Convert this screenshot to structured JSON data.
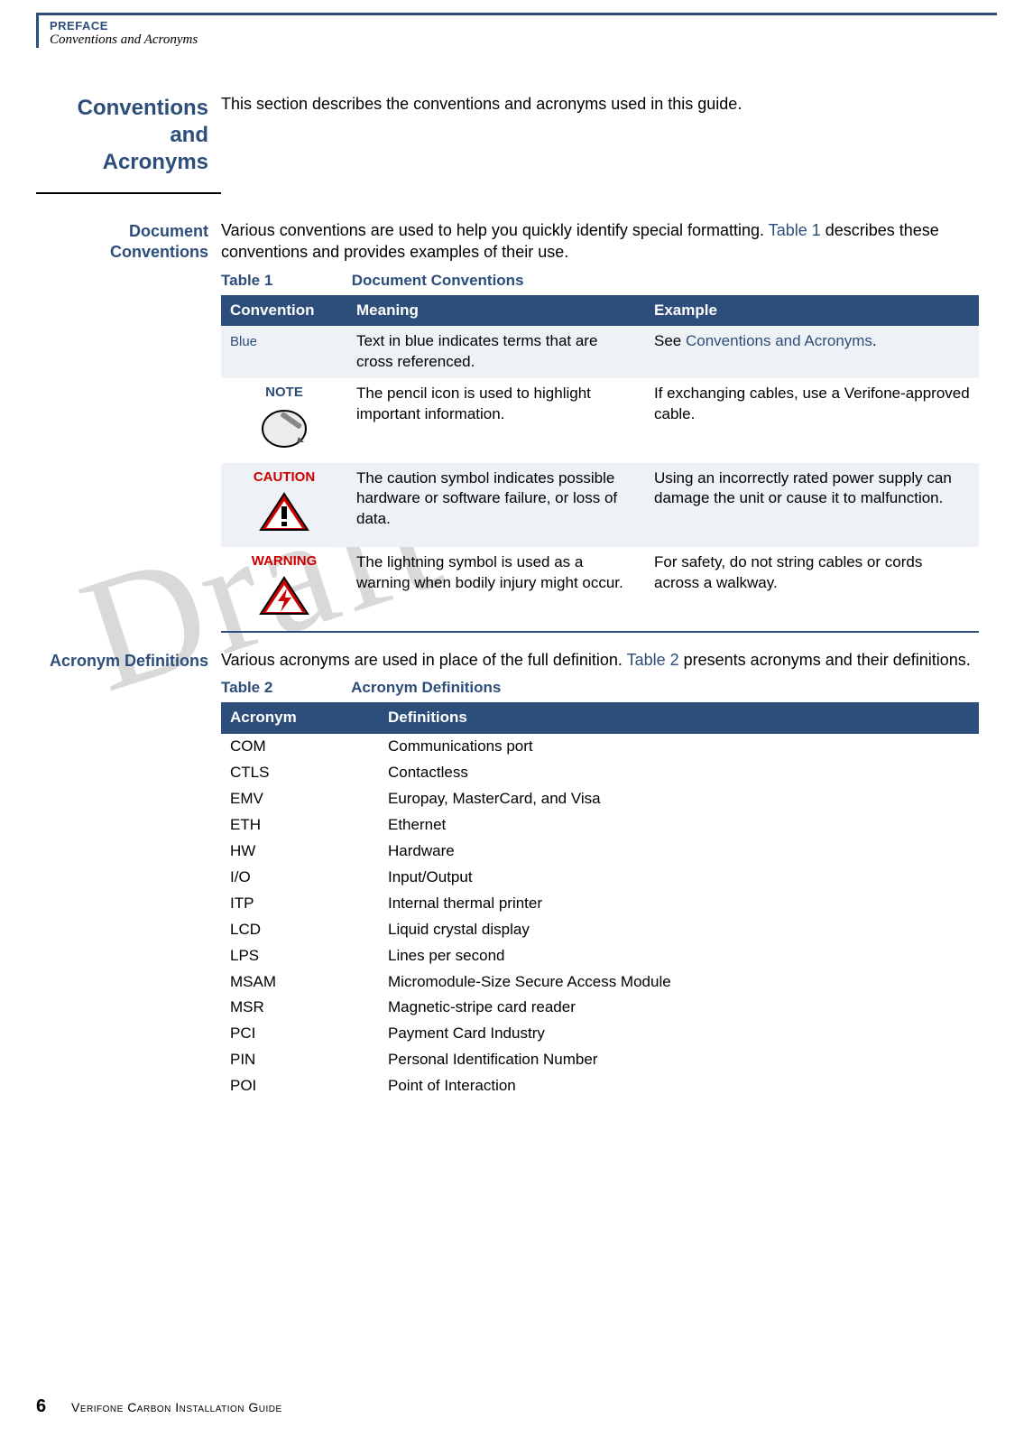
{
  "colors": {
    "brand": "#2d4d7a",
    "danger": "#cc0000",
    "watermark": "#d9d9d9",
    "alt_row": "#eef1f6"
  },
  "header": {
    "section": "PREFACE",
    "subsection": "Conventions and Acronyms"
  },
  "watermark": "Draft",
  "s1": {
    "heading_l1": "Conventions and",
    "heading_l2": "Acronyms",
    "body": "This section describes the conventions and acronyms used in this guide."
  },
  "s2": {
    "heading_l1": "Document",
    "heading_l2": "Conventions",
    "body1": "Various conventions are used to help you quickly identify special formatting. ",
    "body_link": "Table 1",
    "body2": " describes these conventions and provides examples of their use.",
    "table_num": "Table 1",
    "table_title": "Document Conventions",
    "cols": {
      "c1": "Convention",
      "c2": "Meaning",
      "c3": "Example"
    },
    "rows": {
      "r1": {
        "conv": "Blue",
        "mean": "Text in blue indicates terms that are cross referenced.",
        "ex_pre": "See ",
        "ex_link": "Conventions and Acronyms",
        "ex_post": "."
      },
      "r2": {
        "label": "NOTE",
        "mean": "The pencil icon is used to highlight important information.",
        "ex": "If exchanging cables, use a Verifone-approved cable."
      },
      "r3": {
        "label": "CAUTION",
        "mean": "The caution symbol indicates possible hardware or software failure, or loss of data.",
        "ex": "Using an incorrectly rated power supply can damage the unit or cause it to malfunction."
      },
      "r4": {
        "label": "WARNING",
        "mean": "The lightning symbol is used as a warning when bodily injury might occur.",
        "ex": "For safety, do not string cables or cords across a walkway."
      }
    }
  },
  "s3": {
    "heading": "Acronym Definitions",
    "body1": "Various acronyms are used in place of the full definition. ",
    "body_link": "Table 2",
    "body2": " presents acronyms and their definitions.",
    "table_num": "Table 2",
    "table_title": "Acronym Definitions",
    "cols": {
      "c1": "Acronym",
      "c2": "Definitions"
    },
    "rows": [
      {
        "a": "COM",
        "d": "Communications port"
      },
      {
        "a": "CTLS",
        "d": "Contactless"
      },
      {
        "a": "EMV",
        "d": "Europay, MasterCard, and Visa"
      },
      {
        "a": "ETH",
        "d": "Ethernet"
      },
      {
        "a": "HW",
        "d": "Hardware"
      },
      {
        "a": "I/O",
        "d": "Input/Output"
      },
      {
        "a": "ITP",
        "d": "Internal thermal printer"
      },
      {
        "a": "LCD",
        "d": "Liquid crystal display"
      },
      {
        "a": "LPS",
        "d": "Lines per second"
      },
      {
        "a": "MSAM",
        "d": "Micromodule-Size Secure Access Module"
      },
      {
        "a": "MSR",
        "d": "Magnetic-stripe card reader"
      },
      {
        "a": "PCI",
        "d": "Payment Card Industry"
      },
      {
        "a": "PIN",
        "d": "Personal Identification Number"
      },
      {
        "a": "POI",
        "d": "Point of Interaction"
      }
    ]
  },
  "footer": {
    "page": "6",
    "title": "Verifone Carbon Installation Guide"
  }
}
